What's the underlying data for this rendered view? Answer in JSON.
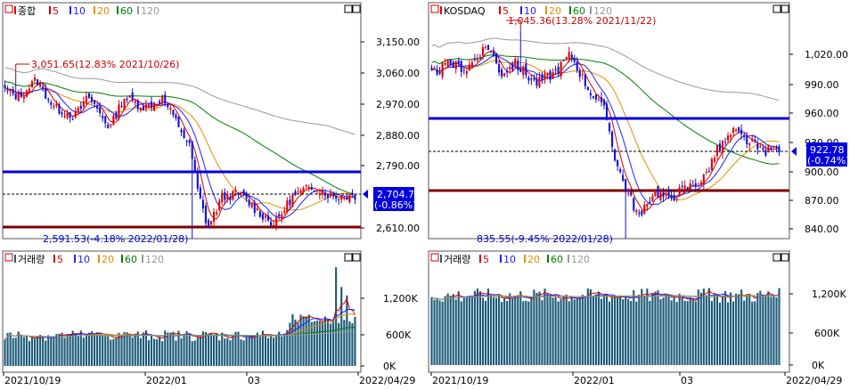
{
  "panels": [
    {
      "id": "left",
      "title": "종합",
      "ma_labels": [
        "5",
        "10",
        "20",
        "60",
        "120"
      ],
      "volume_title": "거래량",
      "price_ticks": [
        "3,150.00",
        "3,060.00",
        "2,970.00",
        "2,880.00",
        "2,790.00",
        "2,610.00"
      ],
      "volume_ticks": [
        "1,200K",
        "600K",
        "0K"
      ],
      "date_labels": [
        "2021/10/19",
        "2022/01",
        "03",
        "2022/04/29"
      ],
      "high_annotation": "3,051.65(12.83% 2021/10/26)",
      "low_annotation": "2,591.53(-4.18% 2022/01/28)",
      "current_price": "2,704.71",
      "current_change": "(-0.86%)"
    },
    {
      "id": "right",
      "title": "KOSDAQ",
      "ma_labels": [
        "5",
        "10",
        "20",
        "60",
        "120"
      ],
      "volume_title": "거래량",
      "price_ticks": [
        "1,020.00",
        "990.00",
        "960.00",
        "930.00",
        "900.00",
        "870.00",
        "840.00"
      ],
      "volume_ticks": [
        "1,200K",
        "600K",
        "0K"
      ],
      "date_labels": [
        "2021/10/19",
        "2022/01",
        "03",
        "2022/04/29"
      ],
      "high_annotation": "1,045.36(13.28% 2021/11/22)",
      "low_annotation": "835.55(-9.45% 2022/01/28)",
      "current_price": "922.78",
      "current_change": "(-0.74%)"
    }
  ],
  "colors": {
    "up": "#e00000",
    "down": "#1010d8",
    "ma5": "#d00000",
    "ma10": "#2020ff",
    "ma20": "#e09000",
    "ma60": "#008000",
    "ma120": "#999999",
    "volume_bar": "#1c5a78",
    "support_line": "#800000",
    "resistance_line": "#0000e0"
  },
  "chart_data": [
    {
      "type": "candlestick",
      "title": "종합",
      "x_range": [
        "2021/10/19",
        "2022/04/29"
      ],
      "ylim": [
        2591.53,
        3150
      ],
      "high": {
        "value": 3051.65,
        "change_pct": 12.83,
        "date": "2021/10/26"
      },
      "low": {
        "value": 2591.53,
        "change_pct": -4.18,
        "date": "2022/01/28"
      },
      "last": {
        "value": 2704.71,
        "change_pct": -0.86
      },
      "horizontal_lines": [
        2790,
        2610
      ],
      "volume_ylim": [
        0,
        1200
      ]
    },
    {
      "type": "candlestick",
      "title": "KOSDAQ",
      "x_range": [
        "2021/10/19",
        "2022/04/29"
      ],
      "ylim": [
        835.55,
        1045.36
      ],
      "high": {
        "value": 1045.36,
        "change_pct": 13.28,
        "date": "2021/11/22"
      },
      "low": {
        "value": 835.55,
        "change_pct": -9.45,
        "date": "2022/01/28"
      },
      "last": {
        "value": 922.78,
        "change_pct": -0.74
      },
      "horizontal_lines": [
        955,
        880
      ],
      "volume_ylim": [
        0,
        1200
      ]
    }
  ]
}
